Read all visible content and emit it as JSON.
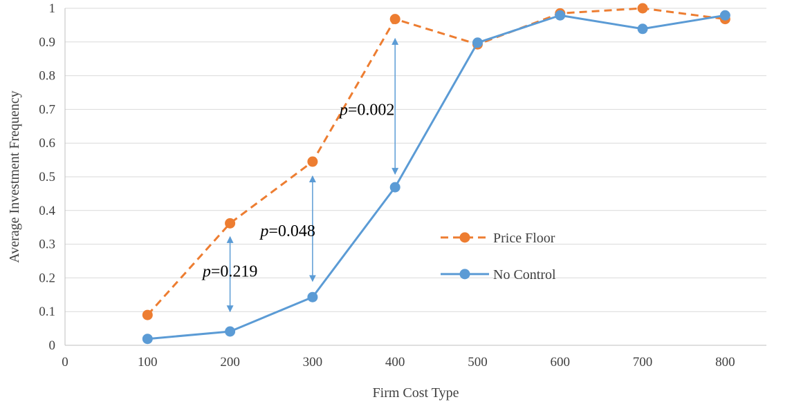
{
  "chart_data": {
    "type": "line",
    "title": "",
    "xlabel": "Firm Cost Type",
    "ylabel": "Average Investment Frequency",
    "x": [
      100,
      200,
      300,
      400,
      500,
      600,
      700,
      800
    ],
    "xlim": [
      0,
      850
    ],
    "ylim": [
      0,
      1
    ],
    "xticks": [
      0,
      100,
      200,
      300,
      400,
      500,
      600,
      700,
      800
    ],
    "yticks": [
      0,
      0.1,
      0.2,
      0.3,
      0.4,
      0.5,
      0.6,
      0.7,
      0.8,
      0.9,
      1
    ],
    "grid": true,
    "legend": "center-right",
    "series": [
      {
        "name": "Price Floor",
        "values": [
          0.09,
          0.362,
          0.545,
          0.968,
          0.893,
          0.985,
          1.0,
          0.968
        ],
        "color": "#ED7D31",
        "line_style": "dashed"
      },
      {
        "name": "No Control",
        "values": [
          0.019,
          0.041,
          0.143,
          0.469,
          0.898,
          0.979,
          0.939,
          0.979
        ],
        "color": "#5B9BD5",
        "line_style": "solid"
      }
    ],
    "annotations": [
      {
        "x": 200,
        "y_low": 0.1,
        "y_high": 0.322,
        "label_italic": "p",
        "label": "=0.219",
        "label_x": 200,
        "label_y": 0.22
      },
      {
        "x": 300,
        "y_low": 0.19,
        "y_high": 0.502,
        "label_italic": "p",
        "label": "=0.048",
        "label_x": 270,
        "label_y": 0.34
      },
      {
        "x": 400,
        "y_low": 0.508,
        "y_high": 0.91,
        "label_italic": "p",
        "label": "=0.002",
        "label_x": 366,
        "label_y": 0.7
      }
    ]
  }
}
